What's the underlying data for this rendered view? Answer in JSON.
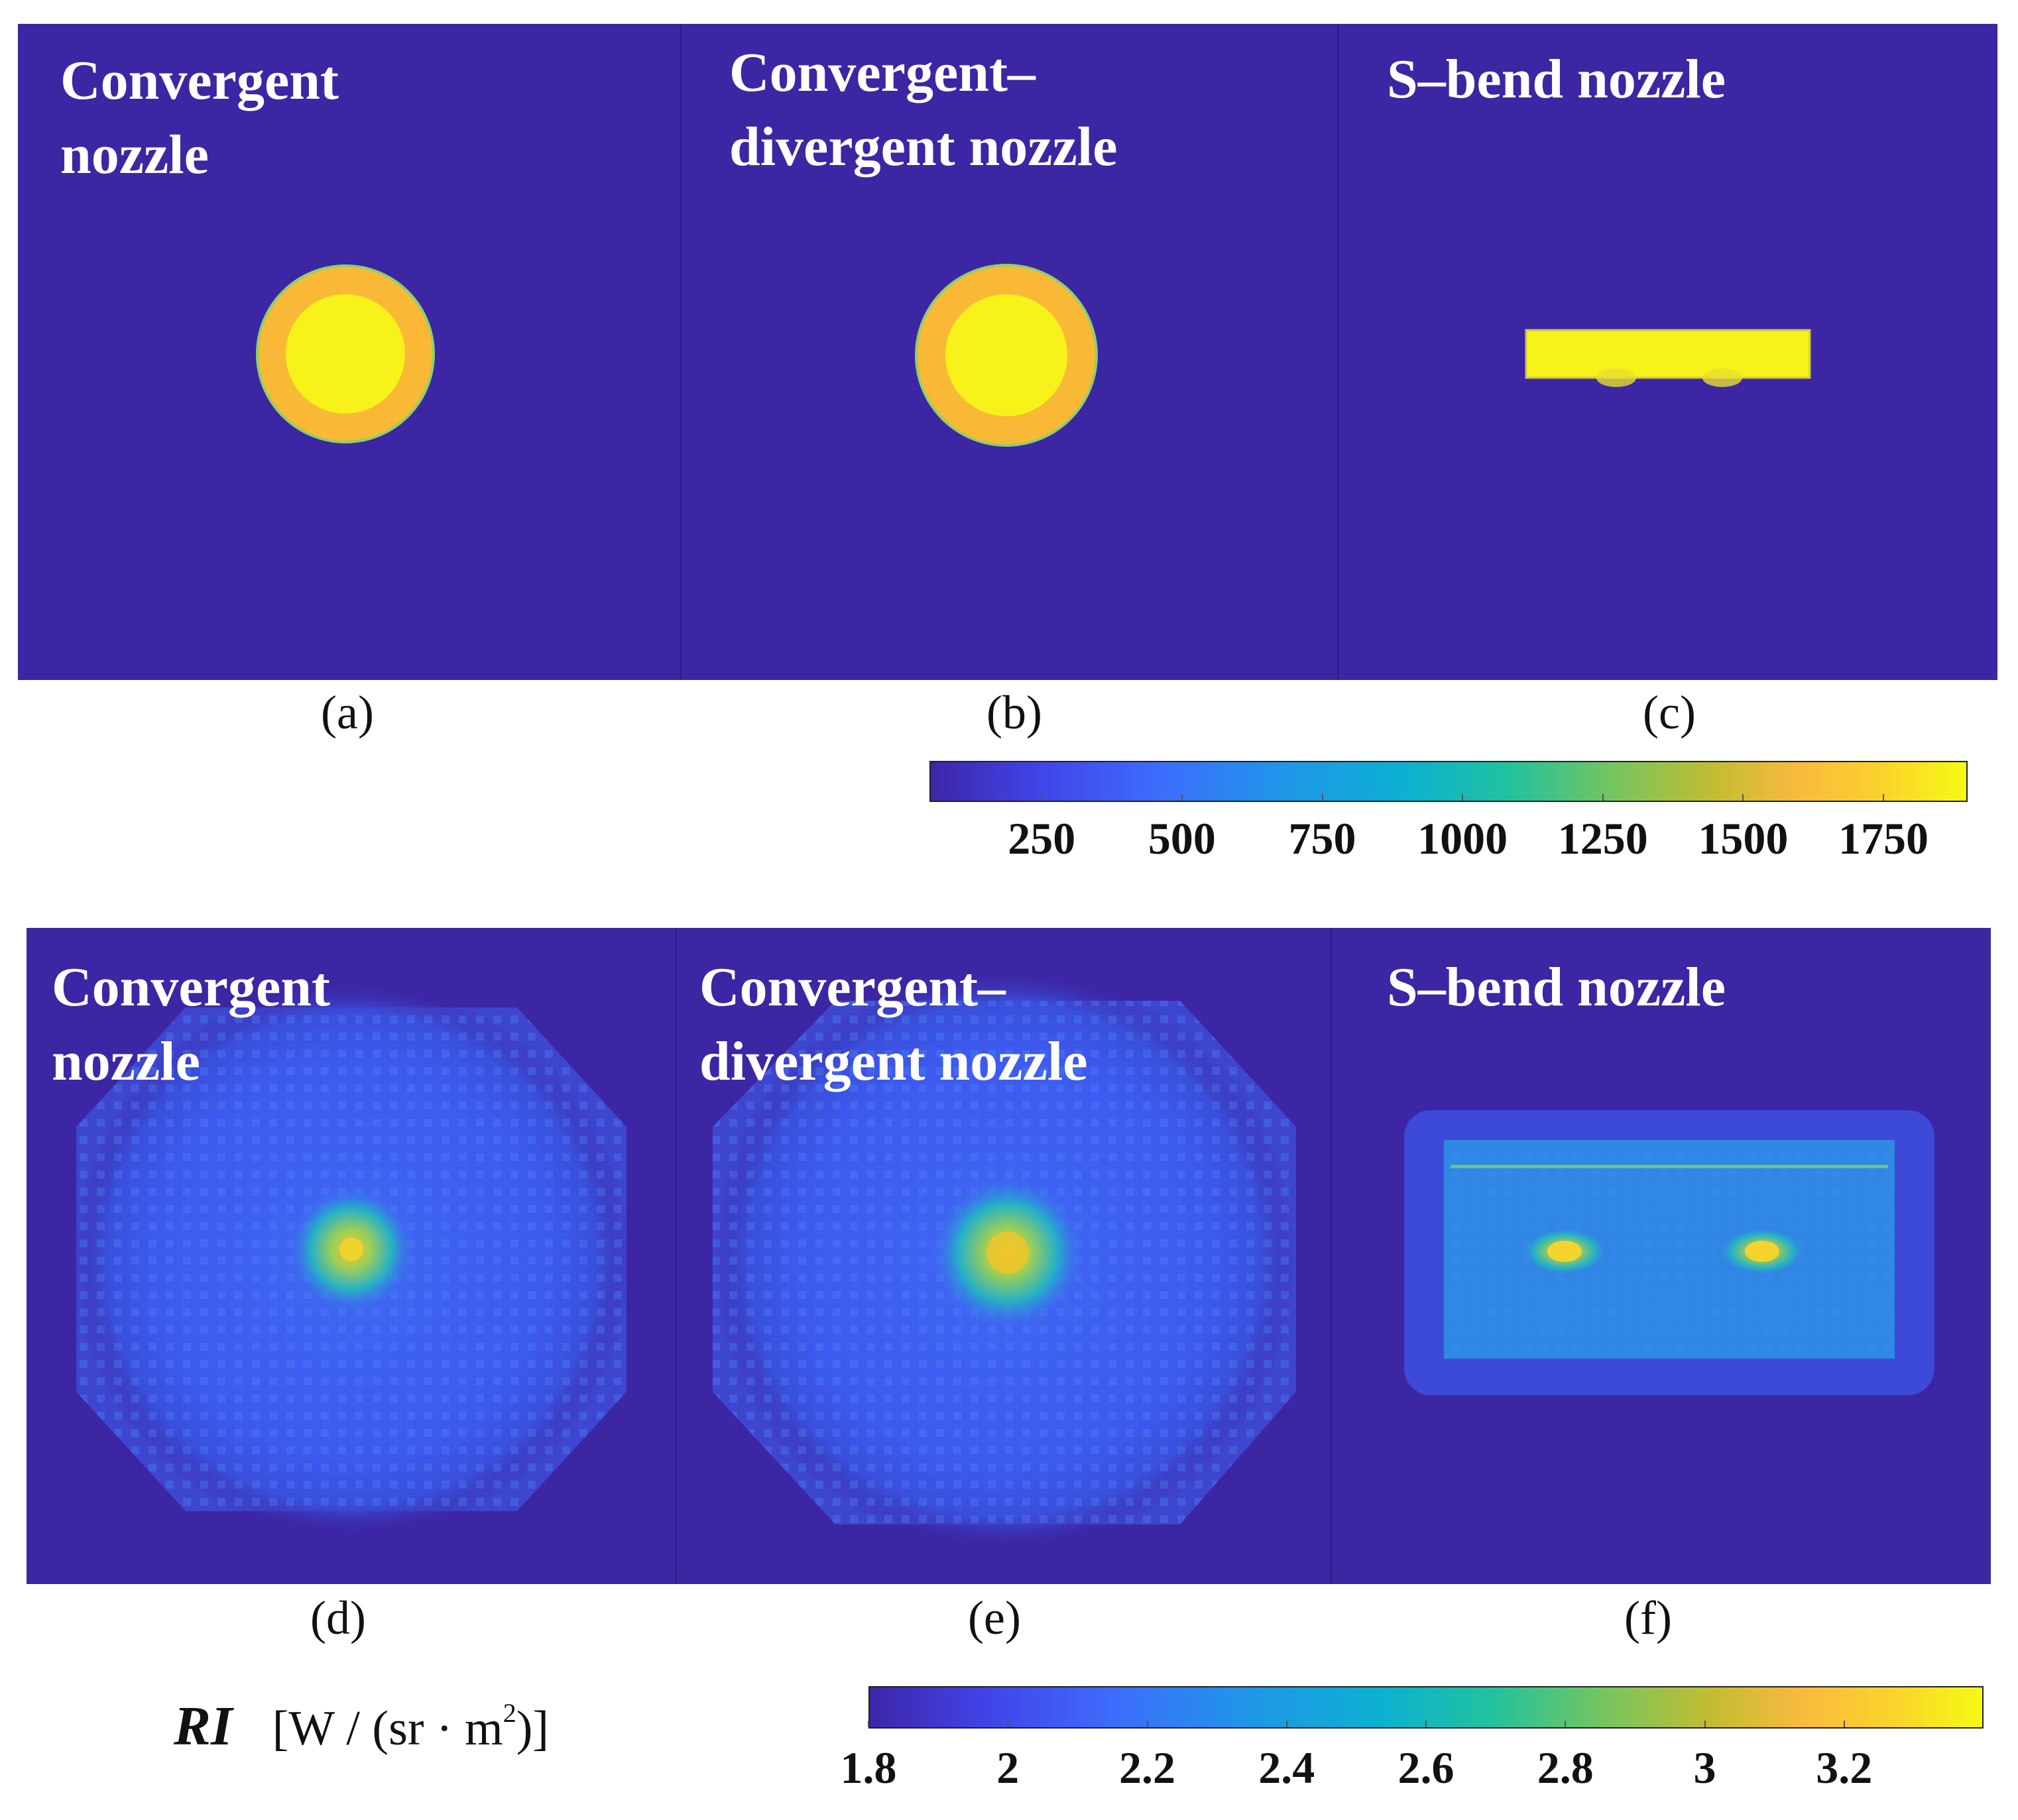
{
  "figure": {
    "top_row": {
      "panels": [
        {
          "title": [
            "Convergent",
            "nozzle"
          ],
          "label": "(a)"
        },
        {
          "title": [
            "Convergent–",
            "divergent nozzle"
          ],
          "label": "(b)"
        },
        {
          "title": [
            "S–bend nozzle"
          ],
          "label": "(c)"
        }
      ],
      "colorbar": {
        "ticks": [
          "250",
          "500",
          "750",
          "1000",
          "1250",
          "1500",
          "1750"
        ]
      }
    },
    "bottom_row": {
      "panels": [
        {
          "title": [
            "Convergent",
            "nozzle"
          ],
          "label": "(d)"
        },
        {
          "title": [
            "Convergent–",
            "divergent nozzle"
          ],
          "label": "(e)"
        },
        {
          "title": [
            "S–bend nozzle"
          ],
          "label": "(f)"
        }
      ],
      "colorbar": {
        "ticks": [
          "1.8",
          "2",
          "2.2",
          "2.4",
          "2.6",
          "2.8",
          "3",
          "3.2"
        ]
      }
    },
    "quantity": {
      "symbol": "RI",
      "unit_prefix": "[W / (sr · m",
      "unit_exp": "2",
      "unit_suffix": ")]"
    }
  },
  "chart_data": [
    {
      "type": "heatmap",
      "title": "",
      "colorbar_ticks": [
        250,
        500,
        750,
        1000,
        1250,
        1500,
        1750
      ],
      "panels": [
        "Convergent nozzle",
        "Convergent–divergent nozzle",
        "S–bend nozzle"
      ],
      "labels": [
        "(a)",
        "(b)",
        "(c)"
      ]
    },
    {
      "type": "heatmap",
      "title": "",
      "colorbar_label": "RI [W / (sr · m2)]",
      "colorbar_ticks": [
        1.8,
        2.0,
        2.2,
        2.4,
        2.6,
        2.8,
        3.0,
        3.2
      ],
      "panels": [
        "Convergent nozzle",
        "Convergent–divergent nozzle",
        "S–bend nozzle"
      ],
      "labels": [
        "(d)",
        "(e)",
        "(f)"
      ]
    }
  ],
  "colors": {
    "background": "#3c26a4",
    "hot": "#f8f914",
    "warm": "#fbb93a"
  }
}
